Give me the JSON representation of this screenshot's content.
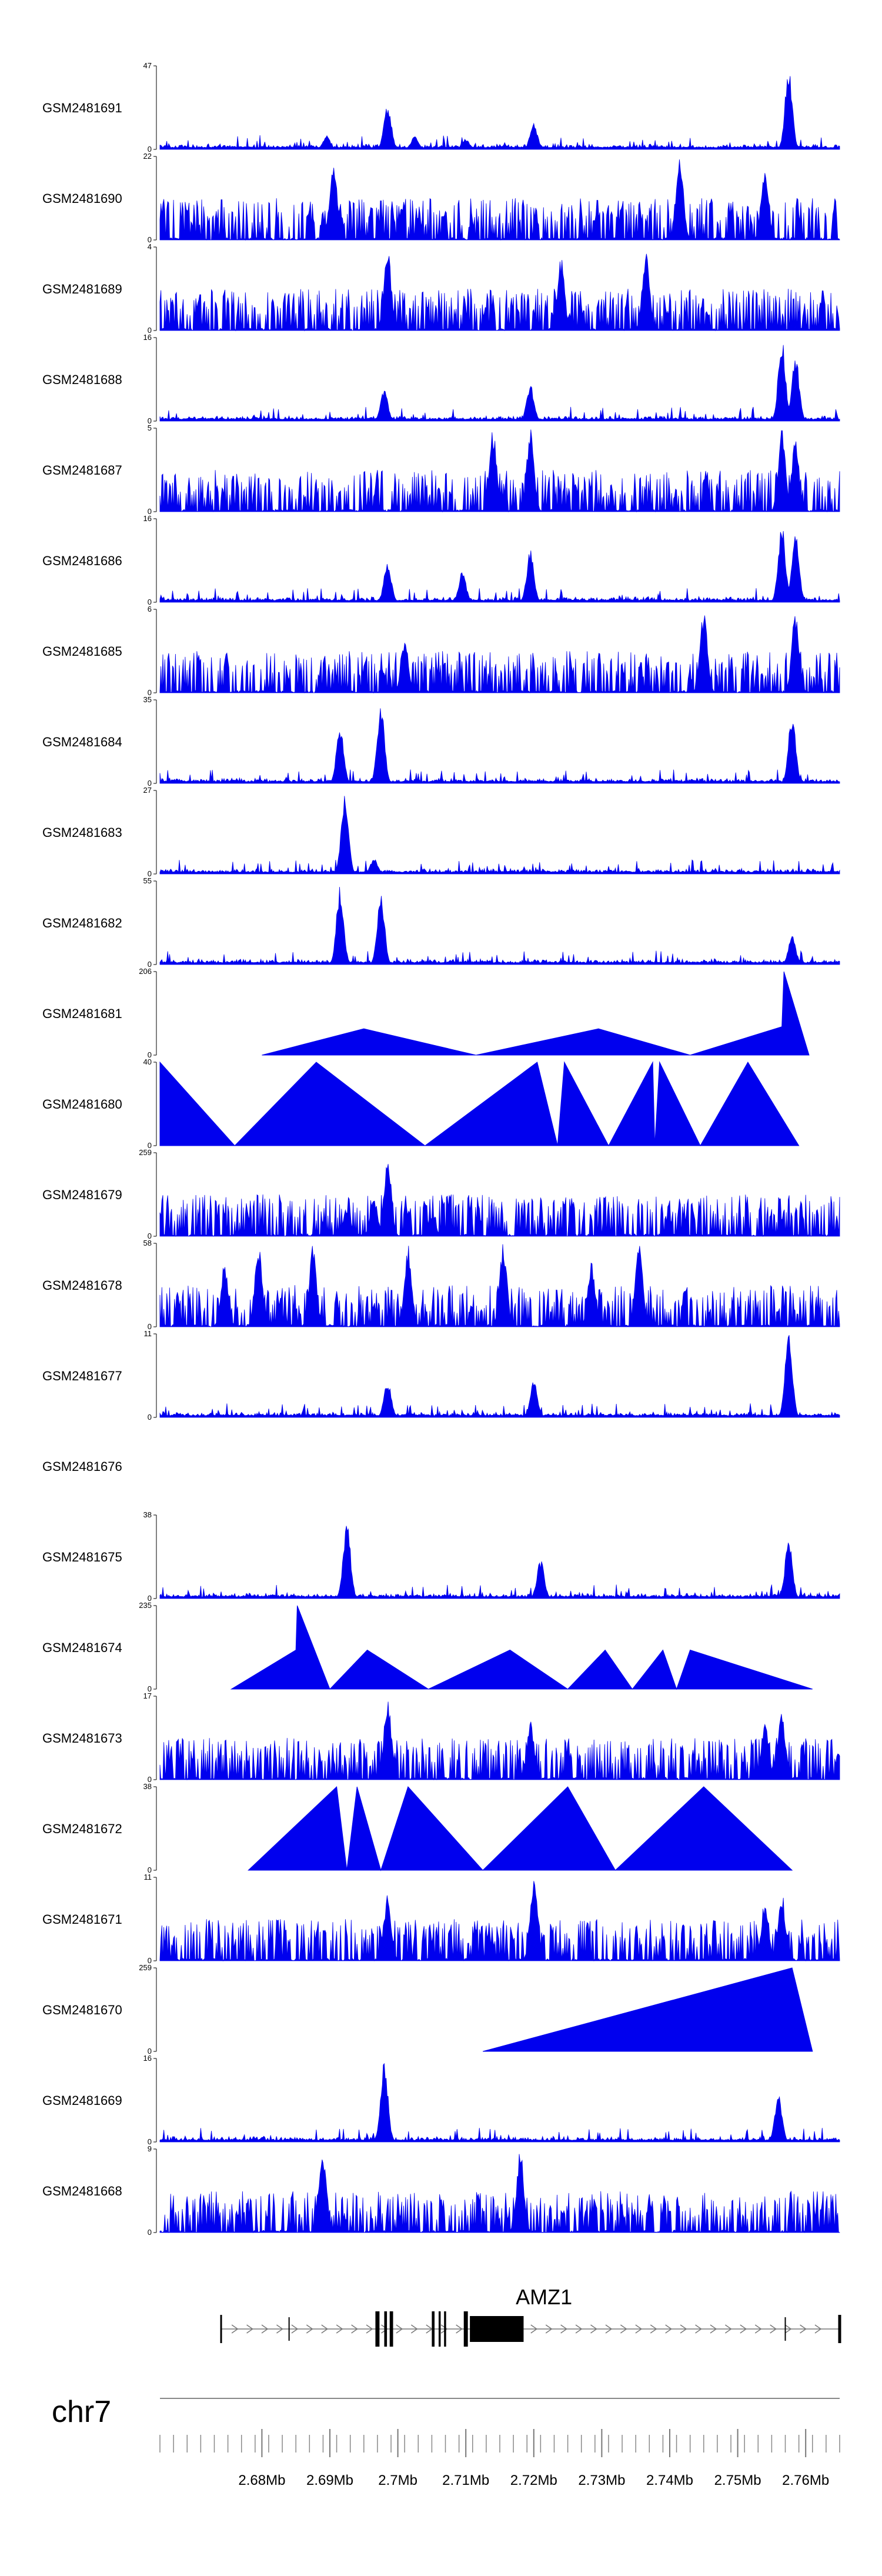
{
  "chart_data": {
    "type": "area",
    "title": "",
    "chromosome": "chr7",
    "xlim_mb": [
      2.665,
      2.765
    ],
    "xlabel": "",
    "ylabel": "",
    "grid": false,
    "color": "#0000ee",
    "genome_axis": {
      "ticks": [
        "2.68Mb",
        "2.69Mb",
        "2.7Mb",
        "2.71Mb",
        "2.72Mb",
        "2.73Mb",
        "2.74Mb",
        "2.75Mb",
        "2.76Mb"
      ],
      "tick_values_mb": [
        2.68,
        2.69,
        2.7,
        2.71,
        2.72,
        2.73,
        2.74,
        2.75,
        2.76
      ],
      "minor_step_mb": 0.002
    },
    "gene": {
      "name": "AMZ1",
      "strand": "+",
      "span_mb": [
        2.674,
        2.765
      ],
      "exons_mb": [
        [
          2.6967,
          2.6973
        ],
        [
          2.698,
          2.6984
        ],
        [
          2.6988,
          2.6993
        ],
        [
          2.705,
          2.7054
        ],
        [
          2.706,
          2.7063
        ],
        [
          2.7068,
          2.7071
        ],
        [
          2.7097,
          2.7103
        ],
        [
          2.7106,
          2.7185
        ]
      ],
      "marks_mb": [
        2.684,
        2.757
      ]
    },
    "series": [
      {
        "name": "GSM2481691",
        "ymax": 47,
        "style": "dense",
        "peaks": [
          [
            2.6895,
            8
          ],
          [
            2.6985,
            26
          ],
          [
            2.7025,
            8
          ],
          [
            2.72,
            15
          ],
          [
            2.7575,
            46
          ],
          [
            2.71,
            6
          ]
        ]
      },
      {
        "name": "GSM2481690",
        "ymax": 22,
        "style": "mixed",
        "peaks": [
          [
            2.6905,
            22
          ],
          [
            2.7415,
            22
          ],
          [
            2.754,
            20
          ]
        ]
      },
      {
        "name": "GSM2481689",
        "ymax": 4,
        "style": "mixed",
        "peaks": [
          [
            2.6985,
            4
          ],
          [
            2.7365,
            4
          ],
          [
            2.724,
            3.5
          ]
        ]
      },
      {
        "name": "GSM2481688",
        "ymax": 16,
        "style": "dense",
        "peaks": [
          [
            2.698,
            6
          ],
          [
            2.7195,
            7
          ],
          [
            2.7565,
            16
          ],
          [
            2.7585,
            13
          ]
        ]
      },
      {
        "name": "GSM2481687",
        "ymax": 5,
        "style": "mixed",
        "peaks": [
          [
            2.714,
            5
          ],
          [
            2.7195,
            5
          ],
          [
            2.7565,
            5
          ],
          [
            2.7585,
            4.5
          ]
        ]
      },
      {
        "name": "GSM2481686",
        "ymax": 16,
        "style": "dense",
        "peaks": [
          [
            2.6985,
            8
          ],
          [
            2.7095,
            6
          ],
          [
            2.7195,
            10
          ],
          [
            2.7565,
            15
          ],
          [
            2.7585,
            14
          ]
        ]
      },
      {
        "name": "GSM2481685",
        "ymax": 6,
        "style": "mixed",
        "peaks": [
          [
            2.745,
            6
          ],
          [
            2.7585,
            6
          ],
          [
            2.701,
            4
          ]
        ]
      },
      {
        "name": "GSM2481684",
        "ymax": 35,
        "style": "dense",
        "peaks": [
          [
            2.6915,
            24
          ],
          [
            2.6975,
            33
          ],
          [
            2.758,
            30
          ]
        ]
      },
      {
        "name": "GSM2481683",
        "ymax": 27,
        "style": "dense",
        "peaks": [
          [
            2.6922,
            26
          ],
          [
            2.6965,
            5
          ]
        ]
      },
      {
        "name": "GSM2481682",
        "ymax": 55,
        "style": "dense",
        "peaks": [
          [
            2.6915,
            52
          ],
          [
            2.6975,
            48
          ],
          [
            2.758,
            20
          ]
        ]
      },
      {
        "name": "GSM2481681",
        "ymax": 206,
        "style": "sparse",
        "shape": [
          [
            2.68,
            0
          ],
          [
            2.695,
            65
          ],
          [
            2.7115,
            0
          ],
          [
            2.7295,
            65
          ],
          [
            2.743,
            0
          ],
          [
            2.7565,
            70
          ],
          [
            2.7568,
            206
          ],
          [
            2.7605,
            0
          ]
        ]
      },
      {
        "name": "GSM2481680",
        "ymax": 40,
        "style": "sparse",
        "shape": [
          [
            2.665,
            40
          ],
          [
            2.676,
            0
          ],
          [
            2.688,
            40
          ],
          [
            2.704,
            0
          ],
          [
            2.7205,
            40
          ],
          [
            2.7235,
            0
          ],
          [
            2.7245,
            40
          ],
          [
            2.731,
            0
          ],
          [
            2.7375,
            40
          ],
          [
            2.7378,
            0
          ],
          [
            2.7385,
            40
          ],
          [
            2.7445,
            0
          ],
          [
            2.7515,
            40
          ],
          [
            2.759,
            0
          ]
        ]
      },
      {
        "name": "GSM2481679",
        "ymax": 259,
        "style": "mixed",
        "peaks": [
          [
            2.6985,
            250
          ],
          [
            2.6925,
            90
          ],
          [
            2.6965,
            120
          ],
          [
            2.705,
            70
          ]
        ]
      },
      {
        "name": "GSM2481678",
        "ymax": 58,
        "style": "mixed",
        "peaks": [
          [
            2.6795,
            58
          ],
          [
            2.6875,
            58
          ],
          [
            2.7015,
            58
          ],
          [
            2.7155,
            58
          ],
          [
            2.7355,
            58
          ],
          [
            2.6745,
            45
          ],
          [
            2.7285,
            45
          ]
        ]
      },
      {
        "name": "GSM2481677",
        "ymax": 11,
        "style": "dense",
        "peaks": [
          [
            2.6985,
            5
          ],
          [
            2.72,
            5
          ],
          [
            2.7575,
            11
          ]
        ]
      },
      {
        "name": "GSM2481676",
        "ymax": null,
        "style": "empty"
      },
      {
        "name": "GSM2481675",
        "ymax": 38,
        "style": "dense",
        "peaks": [
          [
            2.6925,
            36
          ],
          [
            2.721,
            18
          ],
          [
            2.7575,
            28
          ]
        ]
      },
      {
        "name": "GSM2481674",
        "ymax": 235,
        "style": "sparse",
        "shape": [
          [
            2.6755,
            0
          ],
          [
            2.685,
            110
          ],
          [
            2.6852,
            235
          ],
          [
            2.69,
            0
          ],
          [
            2.6955,
            110
          ],
          [
            2.7045,
            0
          ],
          [
            2.7165,
            110
          ],
          [
            2.725,
            0
          ],
          [
            2.7305,
            110
          ],
          [
            2.7345,
            0
          ],
          [
            2.739,
            110
          ],
          [
            2.741,
            0
          ],
          [
            2.743,
            110
          ],
          [
            2.761,
            0
          ]
        ]
      },
      {
        "name": "GSM2481673",
        "ymax": 17,
        "style": "mixed",
        "peaks": [
          [
            2.6985,
            17
          ],
          [
            2.7195,
            12
          ],
          [
            2.754,
            12
          ],
          [
            2.7565,
            14
          ]
        ]
      },
      {
        "name": "GSM2481672",
        "ymax": 38,
        "style": "sparse",
        "shape": [
          [
            2.678,
            0
          ],
          [
            2.691,
            38
          ],
          [
            2.6925,
            0
          ],
          [
            2.694,
            38
          ],
          [
            2.6975,
            0
          ],
          [
            2.7015,
            38
          ],
          [
            2.7125,
            0
          ],
          [
            2.725,
            38
          ],
          [
            2.732,
            0
          ],
          [
            2.745,
            38
          ],
          [
            2.758,
            0
          ]
        ]
      },
      {
        "name": "GSM2481671",
        "ymax": 11,
        "style": "mixed",
        "peaks": [
          [
            2.72,
            11
          ],
          [
            2.6985,
            9
          ],
          [
            2.754,
            8
          ],
          [
            2.7565,
            9
          ]
        ]
      },
      {
        "name": "GSM2481670",
        "ymax": 259,
        "style": "sparse",
        "shape": [
          [
            2.7125,
            0
          ],
          [
            2.758,
            259
          ],
          [
            2.761,
            0
          ]
        ]
      },
      {
        "name": "GSM2481669",
        "ymax": 16,
        "style": "dense",
        "peaks": [
          [
            2.698,
            16
          ],
          [
            2.756,
            9
          ]
        ]
      },
      {
        "name": "GSM2481668",
        "ymax": 9,
        "style": "mixed",
        "peaks": [
          [
            2.742,
            0
          ],
          [
            2.689,
            9
          ],
          [
            2.718,
            9
          ]
        ]
      }
    ]
  }
}
